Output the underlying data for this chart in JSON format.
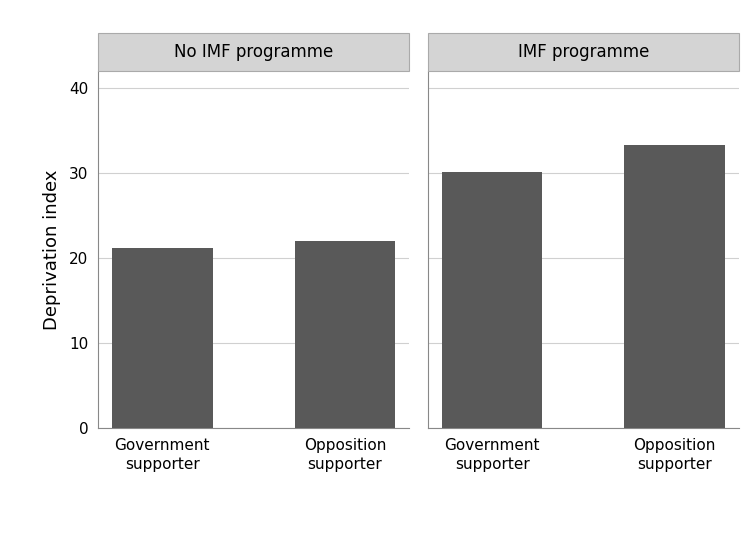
{
  "panels": [
    {
      "title": "No IMF programme",
      "categories": [
        "Government\nsupporter",
        "Opposition\nsupporter"
      ],
      "values": [
        21.2,
        22.0
      ]
    },
    {
      "title": "IMF programme",
      "categories": [
        "Government\nsupporter",
        "Opposition\nsupporter"
      ],
      "values": [
        30.1,
        33.3
      ]
    }
  ],
  "bar_color": "#595959",
  "bar_width": 0.55,
  "ylim": [
    0,
    42
  ],
  "yticks": [
    0,
    10,
    20,
    30,
    40
  ],
  "ylabel": "Deprivation index",
  "panel_header_bg": "#d4d4d4",
  "panel_header_fontsize": 12,
  "tick_label_fontsize": 11,
  "ylabel_fontsize": 13,
  "grid_color": "#d0d0d0",
  "background_color": "#ffffff",
  "header_border_color": "#aaaaaa",
  "spine_color": "#888888"
}
